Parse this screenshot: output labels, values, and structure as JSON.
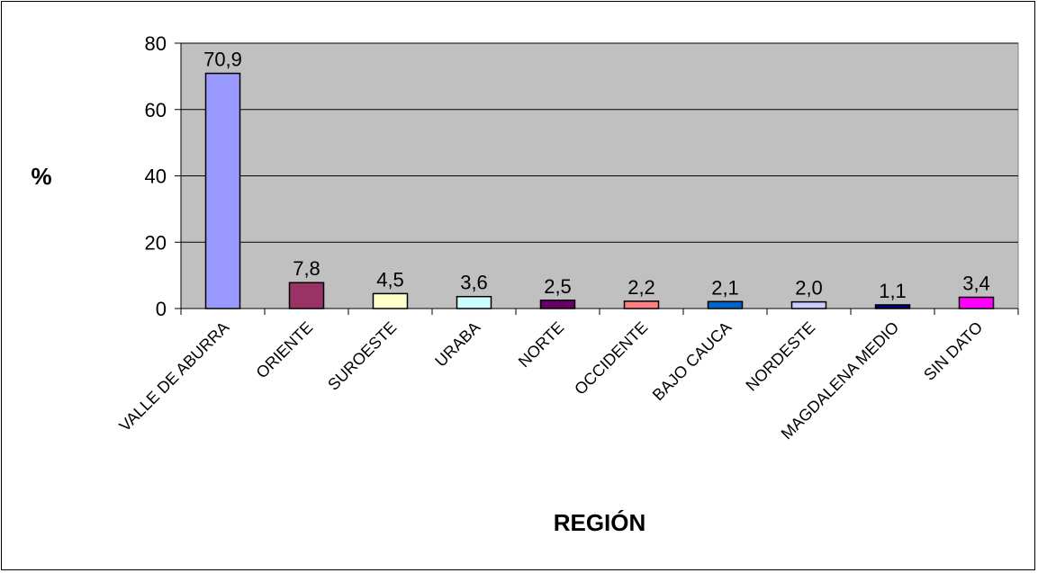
{
  "chart_data": {
    "type": "bar",
    "xlabel": "REGIÓN",
    "ylabel": "%",
    "ylim": [
      0,
      80
    ],
    "yticks": [
      0,
      20,
      40,
      60,
      80
    ],
    "grid": true,
    "plot_background": "#c0c0c0",
    "categories": [
      "VALLE DE ABURRA",
      "ORIENTE",
      "SUROESTE",
      "URABA",
      "NORTE",
      "OCCIDENTE",
      "BAJO CAUCA",
      "NORDESTE",
      "MAGDALENA MEDIO",
      "SIN DATO"
    ],
    "values": [
      70.9,
      7.8,
      4.5,
      3.6,
      2.5,
      2.2,
      2.1,
      2.0,
      1.1,
      3.4
    ],
    "value_labels": [
      "70,9",
      "7,8",
      "4,5",
      "3,6",
      "2,5",
      "2,2",
      "2,1",
      "2,0",
      "1,1",
      "3,4"
    ],
    "colors": [
      "#9999ff",
      "#993366",
      "#ffffcc",
      "#ccffff",
      "#660066",
      "#ff8080",
      "#0066cc",
      "#ccccff",
      "#000080",
      "#ff00ff"
    ]
  }
}
